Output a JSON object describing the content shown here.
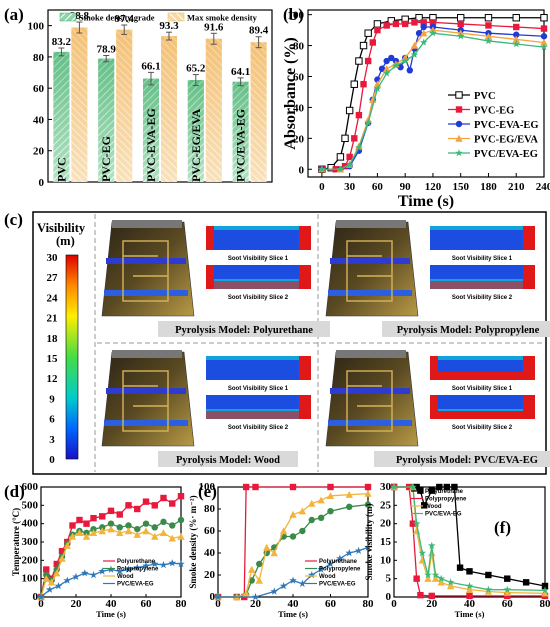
{
  "panel_a": {
    "label": "(a)",
    "chart_data": {
      "type": "bar",
      "categories": [
        "PVC",
        "PVC-EG",
        "PVC-EVA-EG",
        "PVC-EG/EVA",
        "PVC/EVA-EG"
      ],
      "series": [
        {
          "name": "Smoke density grade",
          "values": [
            83.2,
            78.9,
            66.1,
            65.2,
            64.1
          ],
          "errors": [
            2.5,
            2.0,
            4.0,
            3.5,
            2.5
          ],
          "color": "#3cb371"
        },
        {
          "name": "Max smoke density",
          "values": [
            98.8,
            97.4,
            93.3,
            91.6,
            89.4
          ],
          "errors": [
            3.5,
            3.0,
            2.5,
            3.5,
            3.5
          ],
          "color": "#f0b14a"
        }
      ],
      "value_labels": [
        [
          "83.2",
          "78.9",
          "66.1",
          "65.2",
          "64.1"
        ],
        [
          "98.8",
          "97.4",
          "93.3",
          "91.6",
          "89.4"
        ]
      ],
      "ylim": [
        0,
        110
      ],
      "yticks": [
        "0",
        "20",
        "40",
        "60",
        "80",
        "100"
      ]
    }
  },
  "panel_b": {
    "label": "(b)",
    "chart_data": {
      "type": "line",
      "xlabel": "Time (s)",
      "ylabel": "Absorbance (%)",
      "xlim": [
        -15,
        240
      ],
      "ylim": [
        -5,
        103
      ],
      "xticks": [
        "0",
        "30",
        "60",
        "90",
        "120",
        "150",
        "180",
        "210",
        "240"
      ],
      "yticks": [
        "0",
        "20",
        "40",
        "60",
        "80",
        "100"
      ],
      "legend_position": "bottom-right",
      "series": [
        {
          "name": "PVC",
          "color": "#000000",
          "marker": "square-open",
          "x": [
            0,
            10,
            20,
            25,
            30,
            35,
            40,
            45,
            50,
            60,
            75,
            90,
            105,
            120,
            150,
            180,
            210,
            240
          ],
          "y": [
            0,
            1,
            8,
            20,
            38,
            55,
            70,
            80,
            88,
            94,
            96,
            97,
            98,
            98,
            98,
            98,
            98,
            98
          ]
        },
        {
          "name": "PVC-EG",
          "color": "#e8193c",
          "marker": "square",
          "x": [
            0,
            15,
            25,
            30,
            35,
            40,
            45,
            50,
            55,
            60,
            70,
            80,
            90,
            100,
            110,
            120,
            150,
            180,
            210,
            240
          ],
          "y": [
            0,
            0,
            2,
            8,
            20,
            35,
            55,
            70,
            82,
            90,
            93,
            94,
            94,
            95,
            95,
            95,
            94,
            93,
            92,
            91
          ]
        },
        {
          "name": "PVC-EVA-EG",
          "color": "#1f3bd6",
          "marker": "circle",
          "x": [
            0,
            20,
            30,
            40,
            50,
            55,
            60,
            65,
            70,
            75,
            80,
            85,
            90,
            95,
            100,
            105,
            110,
            120,
            150,
            180,
            210,
            240
          ],
          "y": [
            0,
            0,
            2,
            12,
            30,
            45,
            58,
            65,
            70,
            72,
            70,
            66,
            72,
            64,
            78,
            88,
            92,
            92,
            90,
            88,
            87,
            86
          ]
        },
        {
          "name": "PVC-EG/EVA",
          "color": "#f4a340",
          "marker": "triangle",
          "x": [
            0,
            20,
            30,
            40,
            50,
            55,
            60,
            70,
            80,
            90,
            100,
            110,
            120,
            150,
            180,
            210,
            240
          ],
          "y": [
            0,
            0,
            3,
            15,
            32,
            45,
            55,
            65,
            68,
            72,
            80,
            88,
            90,
            88,
            86,
            84,
            82
          ]
        },
        {
          "name": "PVC/EVA-EG",
          "color": "#3cb878",
          "marker": "star",
          "x": [
            0,
            20,
            30,
            40,
            50,
            60,
            70,
            80,
            90,
            100,
            110,
            120,
            150,
            180,
            210,
            240
          ],
          "y": [
            0,
            0,
            3,
            14,
            30,
            52,
            62,
            67,
            70,
            74,
            82,
            88,
            86,
            83,
            81,
            79
          ]
        }
      ]
    }
  },
  "panel_c": {
    "label": "(c)",
    "legend_title": "Visibility",
    "legend_unit": "(m)",
    "legend_ticks": [
      "30",
      "27",
      "24",
      "21",
      "18",
      "15",
      "12",
      "9",
      "6",
      "3",
      "0"
    ],
    "cells": [
      {
        "title": "Pyrolysis Model: Polyurethane",
        "slice1": "Soot Visibility Slice 1",
        "slice2": "Soot Visibility Slice 2"
      },
      {
        "title": "Pyrolysis Model: Polypropylene",
        "slice1": "Soot Visibility Slice 1",
        "slice2": "Soot Visibility Slice 2"
      },
      {
        "title": "Pyrolysis Model: Wood",
        "slice1": "Soot Visibility Slice 1",
        "slice2": "Soot Visibility Slice 2"
      },
      {
        "title": "Pyrolysis Model: PVC/EVA-EG",
        "slice1": "Soot Visibility Slice 1",
        "slice2": "Soot Visibility Slice 2"
      }
    ]
  },
  "panel_d": {
    "label": "(d)",
    "chart_data": {
      "type": "line",
      "xlabel": "Time (s)",
      "ylabel": "Temperature (°C)",
      "xlim": [
        0,
        80
      ],
      "ylim": [
        0,
        600
      ],
      "xticks": [
        "0",
        "20",
        "40",
        "60",
        "80"
      ],
      "yticks": [
        "0",
        "100",
        "200",
        "300",
        "400",
        "500",
        "600"
      ],
      "series": [
        {
          "name": "Polyurethane",
          "color": "#e8193c",
          "x": [
            0,
            3,
            6,
            9,
            12,
            15,
            18,
            22,
            26,
            30,
            35,
            40,
            45,
            50,
            55,
            60,
            65,
            70,
            75,
            80
          ],
          "y": [
            0,
            150,
            100,
            180,
            250,
            300,
            390,
            420,
            400,
            430,
            440,
            470,
            450,
            500,
            480,
            520,
            500,
            540,
            510,
            550
          ]
        },
        {
          "name": "Polypropylene",
          "color": "#3a8a4a",
          "x": [
            0,
            3,
            6,
            9,
            12,
            15,
            18,
            22,
            26,
            30,
            35,
            40,
            45,
            50,
            55,
            60,
            65,
            70,
            75,
            80
          ],
          "y": [
            0,
            120,
            90,
            150,
            220,
            290,
            340,
            360,
            350,
            370,
            380,
            400,
            380,
            390,
            370,
            400,
            380,
            410,
            390,
            420
          ]
        },
        {
          "name": "Wood",
          "color": "#f2b43a",
          "x": [
            0,
            3,
            6,
            9,
            12,
            15,
            18,
            22,
            26,
            30,
            35,
            40,
            45,
            50,
            55,
            60,
            65,
            70,
            75,
            80
          ],
          "y": [
            0,
            100,
            80,
            130,
            210,
            280,
            330,
            350,
            330,
            350,
            360,
            370,
            350,
            360,
            340,
            360,
            330,
            350,
            320,
            330
          ]
        },
        {
          "name": "PVC/EVA-EG",
          "color": "#2e78b8",
          "x": [
            0,
            5,
            10,
            15,
            20,
            25,
            30,
            35,
            40,
            45,
            50,
            55,
            60,
            65,
            70,
            75,
            80
          ],
          "y": [
            0,
            40,
            60,
            90,
            110,
            130,
            120,
            140,
            150,
            140,
            150,
            160,
            170,
            180,
            175,
            185,
            180
          ]
        }
      ]
    }
  },
  "panel_e": {
    "label": "(e)",
    "chart_data": {
      "type": "line",
      "xlabel": "Time (s)",
      "ylabel": "Smoke density (%· m⁻²)",
      "xlim": [
        0,
        80
      ],
      "ylim": [
        0,
        100
      ],
      "xticks": [
        "0",
        "20",
        "40",
        "60",
        "80"
      ],
      "yticks": [
        "0",
        "20",
        "40",
        "60",
        "80",
        "100"
      ],
      "series": [
        {
          "name": "Polyurethane",
          "color": "#e8193c",
          "x": [
            0,
            10,
            14,
            15,
            20,
            40,
            60,
            80
          ],
          "y": [
            0,
            0,
            0,
            100,
            100,
            100,
            100,
            100
          ]
        },
        {
          "name": "Polypropylene",
          "color": "#3a8a4a",
          "x": [
            0,
            10,
            15,
            18,
            22,
            26,
            30,
            35,
            40,
            45,
            50,
            55,
            60,
            70,
            80
          ],
          "y": [
            0,
            0,
            2,
            15,
            30,
            40,
            45,
            55,
            55,
            60,
            70,
            72,
            78,
            82,
            84
          ]
        },
        {
          "name": "Wood",
          "color": "#f2b43a",
          "x": [
            0,
            10,
            15,
            18,
            22,
            26,
            30,
            35,
            40,
            45,
            50,
            55,
            60,
            70,
            80
          ],
          "y": [
            0,
            0,
            3,
            25,
            15,
            45,
            40,
            60,
            75,
            78,
            85,
            88,
            92,
            93,
            94
          ]
        },
        {
          "name": "PVC/EVA-EG",
          "color": "#2e78b8",
          "x": [
            0,
            20,
            30,
            35,
            40,
            45,
            50,
            55,
            60,
            65,
            70,
            75,
            80
          ],
          "y": [
            0,
            0,
            5,
            10,
            15,
            12,
            20,
            25,
            30,
            35,
            40,
            42,
            45
          ]
        }
      ]
    }
  },
  "panel_f": {
    "label": "(f)",
    "chart_data": {
      "type": "line",
      "xlabel": "Time (s)",
      "ylabel": "Smoke visibility (m)",
      "xlim": [
        0,
        80
      ],
      "ylim": [
        0,
        30
      ],
      "xticks": [
        "0",
        "20",
        "40",
        "60",
        "80"
      ],
      "yticks": [
        "0",
        "5",
        "10",
        "15",
        "20",
        "25",
        "30"
      ],
      "series": [
        {
          "name": "Polyurethane",
          "color": "#000000",
          "x": [
            0,
            12,
            14,
            16,
            20,
            24,
            28,
            32,
            35,
            40,
            50,
            60,
            70,
            80
          ],
          "y": [
            30,
            30,
            29,
            25,
            29,
            30,
            30,
            30,
            8,
            7,
            6,
            5,
            4,
            3
          ]
        },
        {
          "name": "Polypropylene",
          "color": "#e8193c",
          "x": [
            0,
            8,
            10,
            12,
            14,
            20,
            40,
            60,
            80
          ],
          "y": [
            30,
            30,
            20,
            5,
            0.5,
            0.3,
            0.3,
            0.3,
            0.3
          ]
        },
        {
          "name": "Wood",
          "color": "#f2b43a",
          "x": [
            0,
            10,
            12,
            15,
            18,
            20,
            22,
            25,
            30,
            40,
            50,
            60,
            80
          ],
          "y": [
            30,
            30,
            18,
            10,
            5,
            12,
            5,
            4,
            3,
            2,
            1.5,
            1.2,
            1
          ]
        },
        {
          "name": "PVC/EVA-EG",
          "color": "#3cb878",
          "x": [
            0,
            10,
            12,
            15,
            18,
            20,
            22,
            25,
            30,
            40,
            50,
            60,
            80
          ],
          "y": [
            30,
            30,
            20,
            12,
            6,
            14,
            6,
            5,
            4,
            3,
            2,
            2,
            1.8
          ]
        }
      ]
    }
  }
}
